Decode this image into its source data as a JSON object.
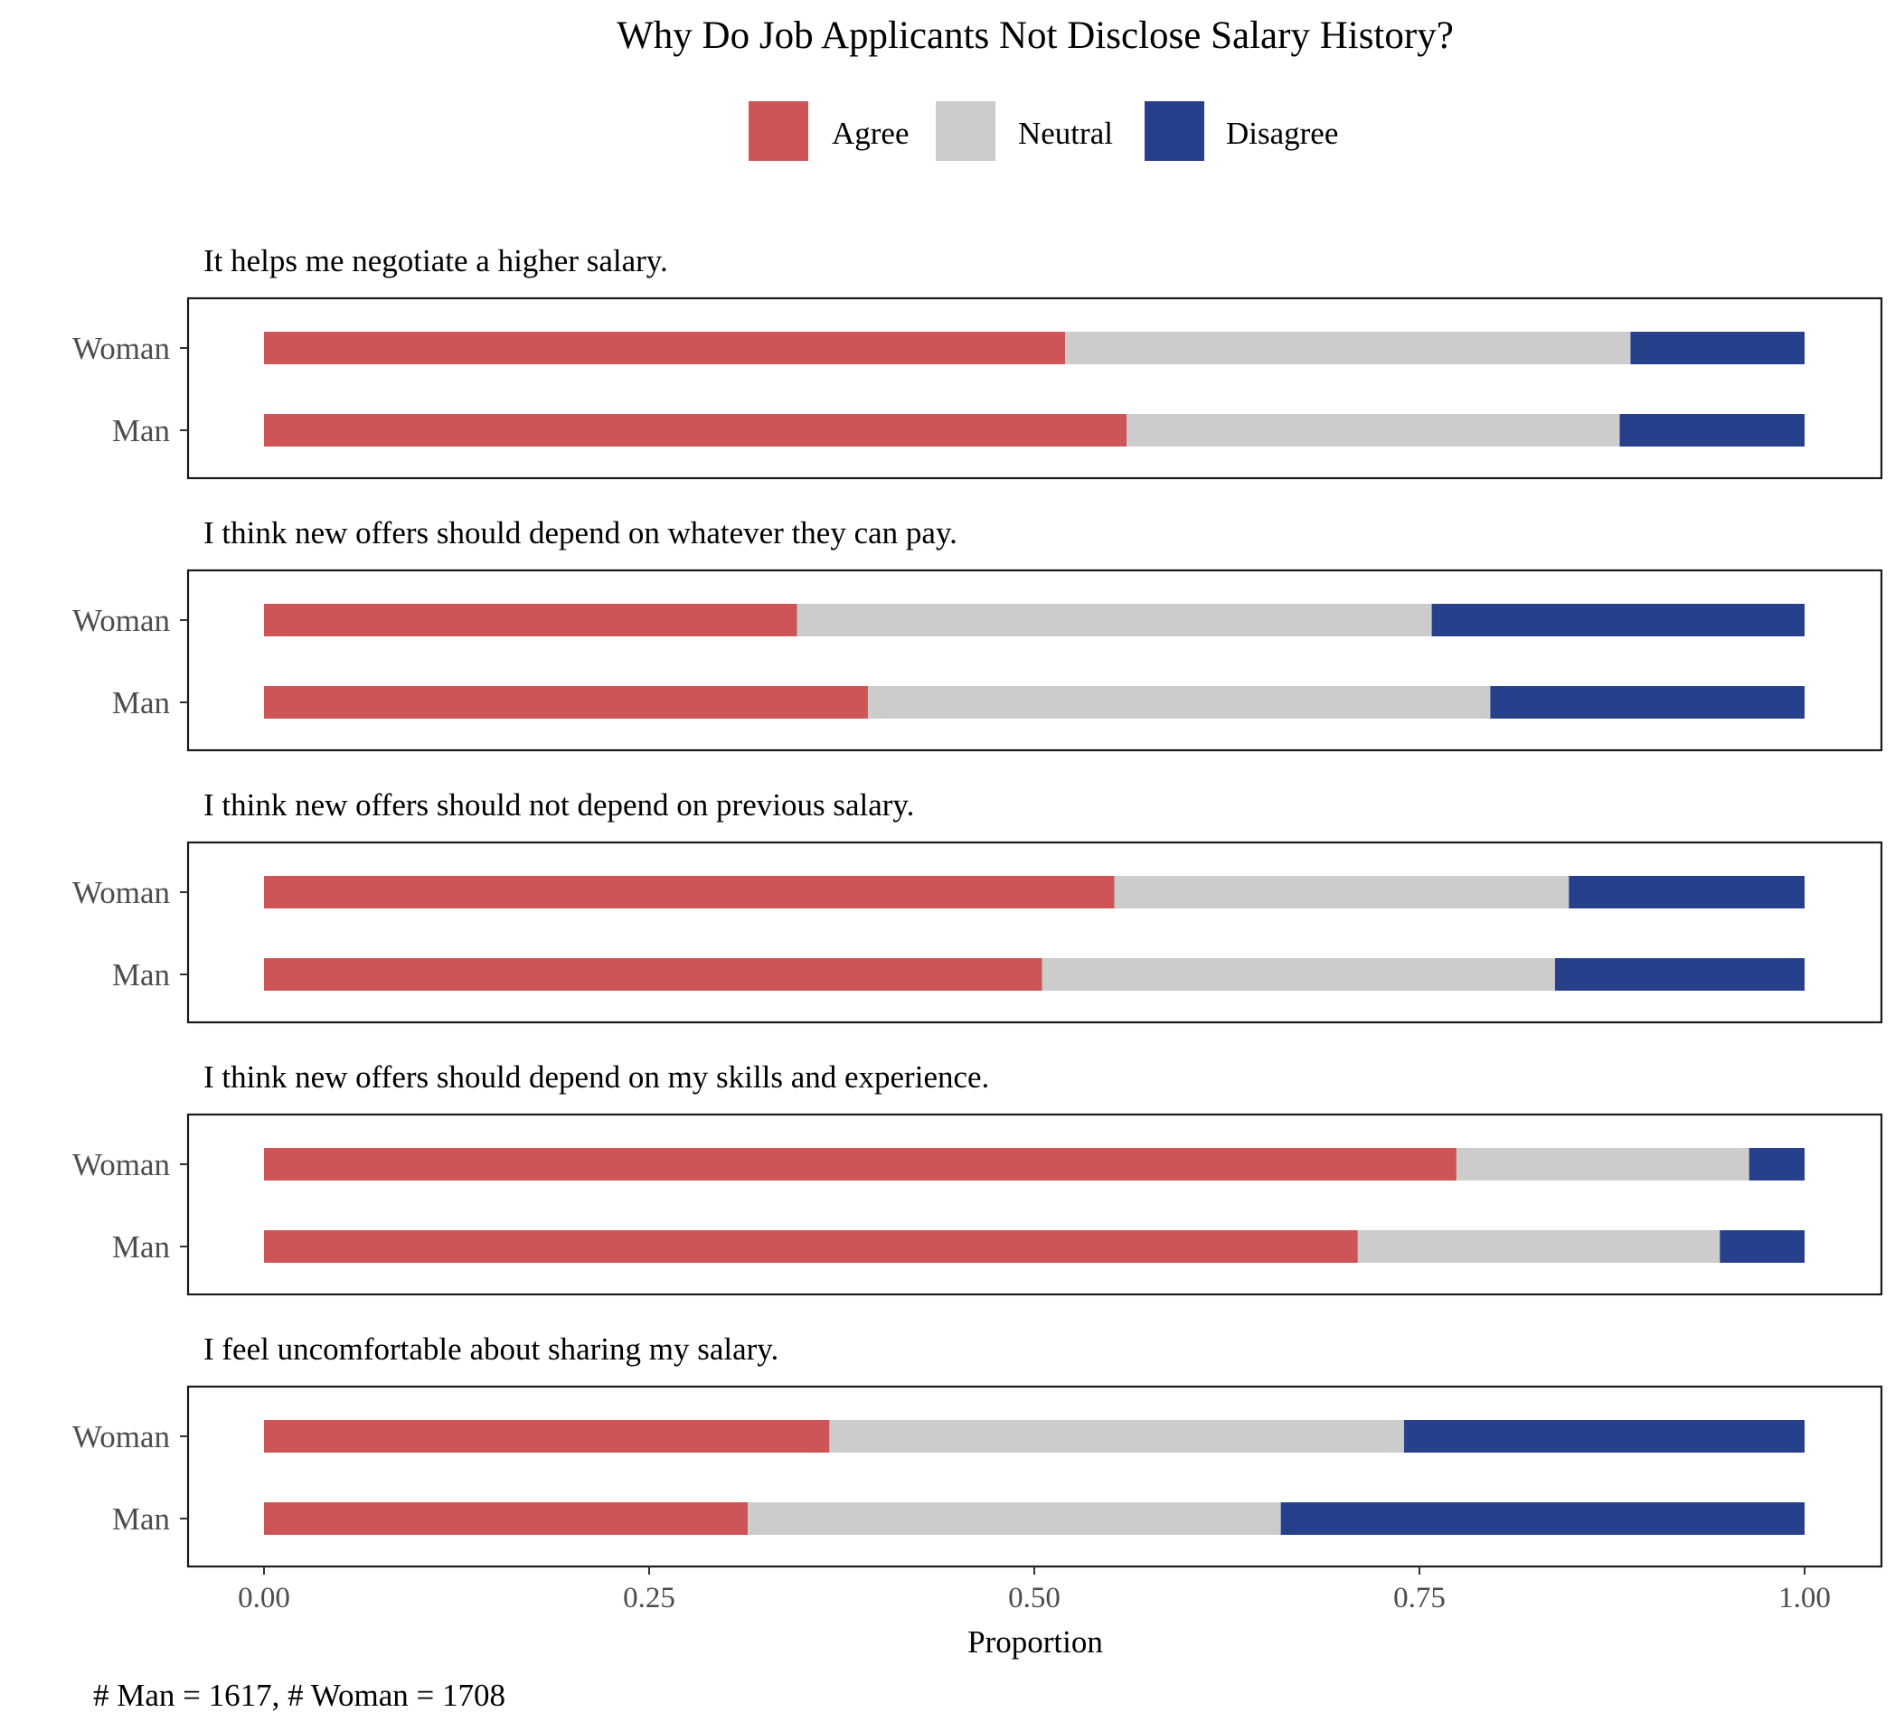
{
  "chart_data": {
    "type": "bar",
    "orientation": "horizontal",
    "stacked": true,
    "title": "Why Do Job Applicants Not Disclose Salary History?",
    "xlabel": "Proportion",
    "ylabel": "",
    "xlim": [
      0,
      1
    ],
    "x_ticks": [
      "0.00",
      "0.25",
      "0.50",
      "0.75",
      "1.00"
    ],
    "x_tick_values": [
      0,
      0.25,
      0.5,
      0.75,
      1
    ],
    "legend": {
      "position": "top",
      "items": [
        {
          "label": "Agree",
          "color": "#CD5555"
        },
        {
          "label": "Neutral",
          "color": "#CCCCCC"
        },
        {
          "label": "Disagree",
          "color": "#27408B"
        }
      ]
    },
    "categories": [
      "Woman",
      "Man"
    ],
    "panels": [
      {
        "title": "It helps me negotiate a higher salary.",
        "series": [
          {
            "name": "Woman",
            "values": {
              "Agree": 0.52,
              "Neutral": 0.367,
              "Disagree": 0.113
            }
          },
          {
            "name": "Man",
            "values": {
              "Agree": 0.56,
              "Neutral": 0.32,
              "Disagree": 0.12
            }
          }
        ]
      },
      {
        "title": "I think new offers should depend on whatever they can pay.",
        "series": [
          {
            "name": "Woman",
            "values": {
              "Agree": 0.346,
              "Neutral": 0.412,
              "Disagree": 0.242
            }
          },
          {
            "name": "Man",
            "values": {
              "Agree": 0.392,
              "Neutral": 0.404,
              "Disagree": 0.204
            }
          }
        ]
      },
      {
        "title": "I think new offers should not depend on previous salary.",
        "series": [
          {
            "name": "Woman",
            "values": {
              "Agree": 0.552,
              "Neutral": 0.295,
              "Disagree": 0.153
            }
          },
          {
            "name": "Man",
            "values": {
              "Agree": 0.505,
              "Neutral": 0.333,
              "Disagree": 0.162
            }
          }
        ]
      },
      {
        "title": "I think new offers should depend on my skills and experience.",
        "series": [
          {
            "name": "Woman",
            "values": {
              "Agree": 0.774,
              "Neutral": 0.19,
              "Disagree": 0.036
            }
          },
          {
            "name": "Man",
            "values": {
              "Agree": 0.71,
              "Neutral": 0.235,
              "Disagree": 0.055
            }
          }
        ]
      },
      {
        "title": "I feel uncomfortable about sharing my salary.",
        "series": [
          {
            "name": "Woman",
            "values": {
              "Agree": 0.367,
              "Neutral": 0.373,
              "Disagree": 0.26
            }
          },
          {
            "name": "Man",
            "values": {
              "Agree": 0.314,
              "Neutral": 0.346,
              "Disagree": 0.34
            }
          }
        ]
      }
    ],
    "caption": "# Man = 1617, # Woman = 1708"
  }
}
